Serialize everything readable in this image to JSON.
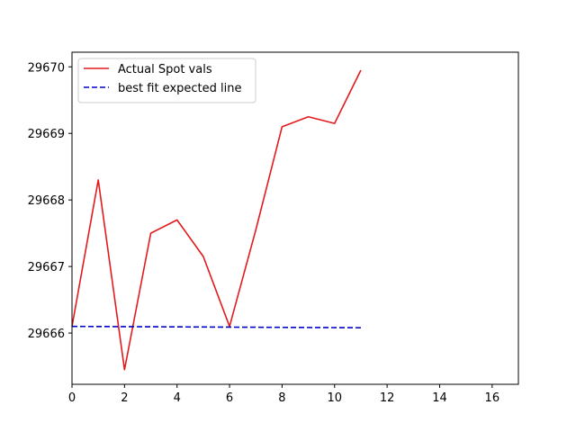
{
  "chart_data": {
    "type": "line",
    "title": "",
    "xlabel": "",
    "ylabel": "",
    "xlim": [
      0,
      17
    ],
    "ylim": [
      29665.23,
      29670.22
    ],
    "xticks": [
      0,
      2,
      4,
      6,
      8,
      10,
      12,
      14,
      16
    ],
    "yticks": [
      29666,
      29667,
      29668,
      29669,
      29670
    ],
    "grid": false,
    "legend": "top-left",
    "series": [
      {
        "name": "Actual Spot vals",
        "color": "#e31a1c",
        "style": "solid",
        "x": [
          0,
          1,
          2,
          3,
          4,
          5,
          6,
          7,
          8,
          9,
          10,
          11
        ],
        "values": [
          29666.1,
          29668.3,
          29665.45,
          29667.5,
          29667.7,
          29667.15,
          29666.1,
          29667.55,
          29669.1,
          29669.25,
          29669.15,
          29669.95
        ]
      },
      {
        "name": "best fit expected line",
        "color": "#0000cc",
        "style": "dashed",
        "x": [
          0,
          11
        ],
        "values": [
          29666.1,
          29666.08
        ]
      }
    ]
  }
}
